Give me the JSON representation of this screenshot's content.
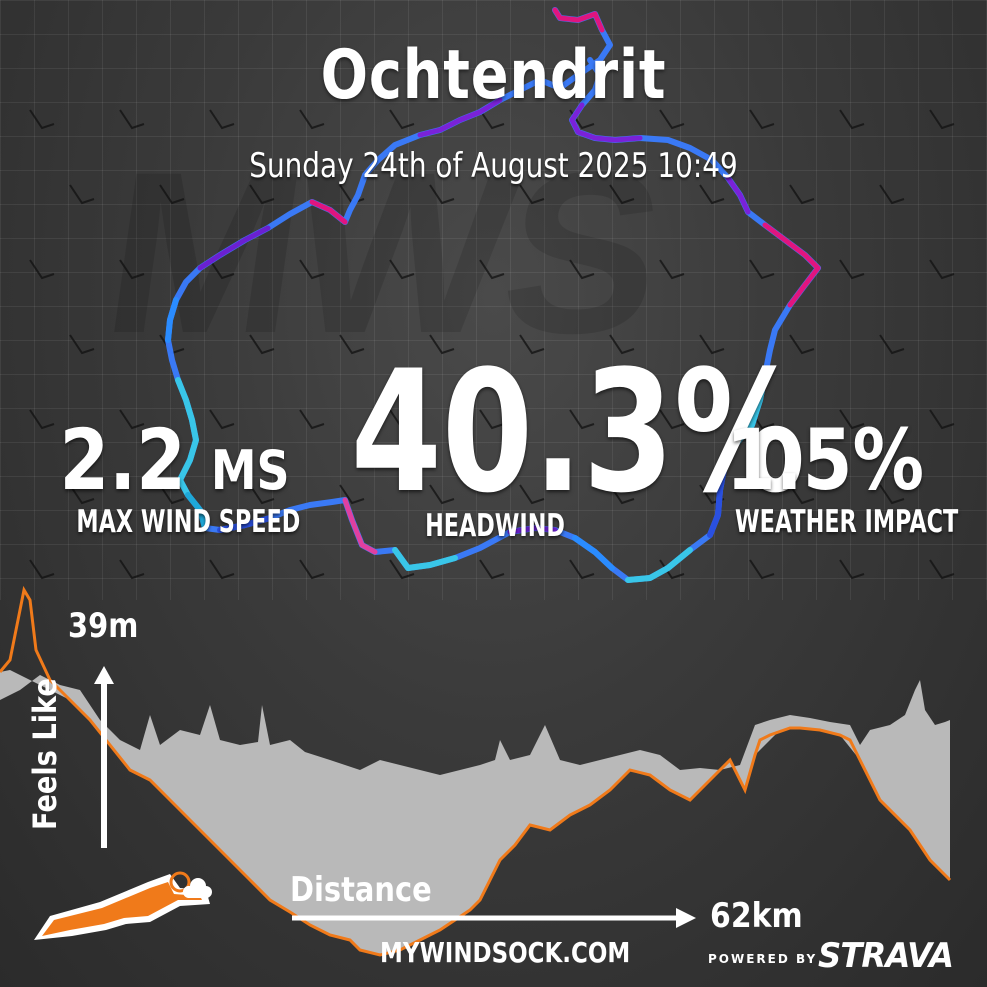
{
  "header": {
    "title": "Ochtendrit",
    "subtitle": "Sunday 24th of August 2025 10:49"
  },
  "stats": {
    "wind_value": "2.2",
    "wind_unit": "MS",
    "wind_label": "MAX WIND SPEED",
    "headwind_value": "40.3%",
    "headwind_label": "HEADWIND",
    "impact_value": "1.5%",
    "impact_label": "WEATHER IMPACT"
  },
  "profile": {
    "elevation_label": "39m",
    "y_axis_label": "Feels Like",
    "x_axis_label": "Distance",
    "distance_value": "62km"
  },
  "footer": {
    "site": "MYWINDSOCK.COM",
    "powered_by": "POWERED BY",
    "brand": "STRAVA"
  },
  "colors": {
    "route_blue": "#2a8cff",
    "route_cyan": "#39c6e8",
    "route_magenta": "#e0157f",
    "route_purple": "#6b20d0",
    "feels_like_line": "#f07a1a",
    "elevation_fill": "#b9b9b9",
    "strava_orange": "#fc4c02"
  },
  "icons": [
    "wind-arrow-icon",
    "arrow-up-icon",
    "arrow-right-icon",
    "mywindsock-logo-icon"
  ]
}
